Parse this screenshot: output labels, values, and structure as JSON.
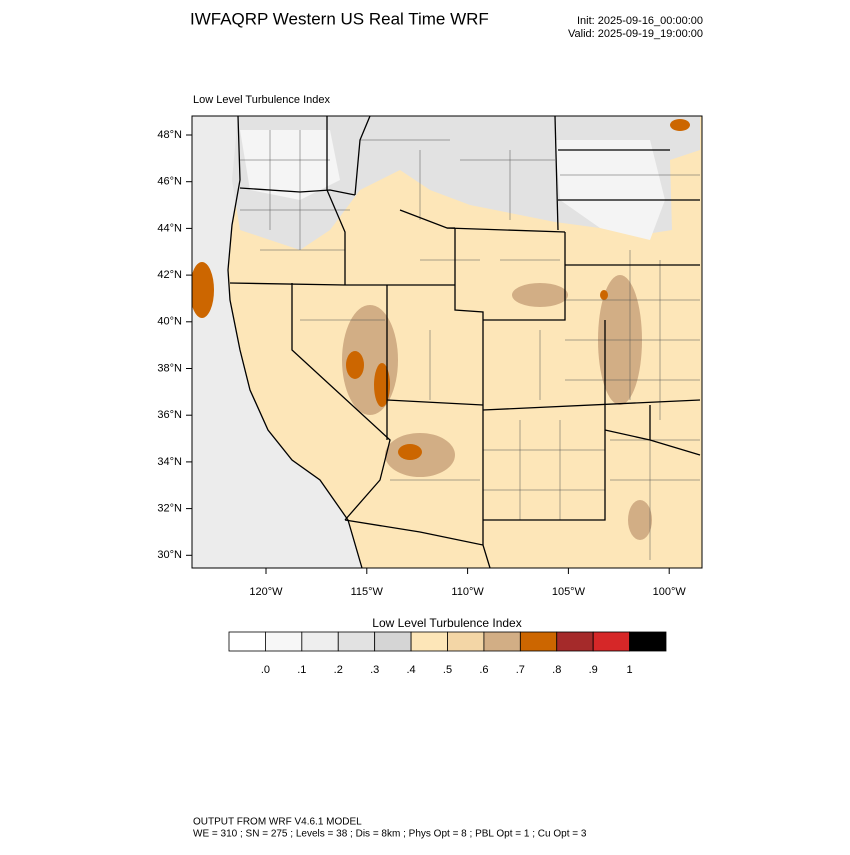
{
  "header": {
    "title": "IWFAQRP Western US Real Time WRF",
    "init": "Init: 2025-09-16_00:00:00",
    "valid": "Valid: 2025-09-19_19:00:00"
  },
  "map": {
    "label": "Low Level Turbulence Index",
    "lat_labels": [
      "48°N",
      "46°N",
      "44°N",
      "42°N",
      "40°N",
      "38°N",
      "36°N",
      "34°N",
      "32°N",
      "30°N"
    ],
    "lon_labels": [
      "120°W",
      "115°W",
      "110°W",
      "105°W",
      "100°W"
    ]
  },
  "colorbar": {
    "title": "Low Level Turbulence Index",
    "colors": [
      "#ffffff",
      "#f7f7f7",
      "#eeeeee",
      "#e2e2e2",
      "#d5d5d5",
      "#fde6b8",
      "#f3d6a6",
      "#d2ae85",
      "#cc6600",
      "#a52a2a",
      "#d62728",
      "#000000"
    ],
    "labels": [
      ".0",
      ".1",
      ".2",
      ".3",
      ".4",
      ".5",
      ".6",
      ".7",
      ".8",
      ".9",
      "1"
    ]
  },
  "footer": {
    "line1": "OUTPUT FROM WRF V4.6.1 MODEL",
    "line2": "WE = 310 ; SN = 275 ; Levels = 38 ; Dis = 8km ; Phys Opt = 8 ; PBL Opt = 1 ; Cu Opt = 3"
  }
}
